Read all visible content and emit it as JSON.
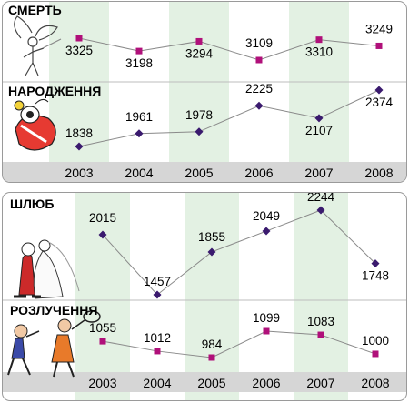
{
  "chart_data": [
    {
      "type": "line",
      "categories": [
        "2003",
        "2004",
        "2005",
        "2006",
        "2007",
        "2008"
      ],
      "series": [
        {
          "name": "СМЕРТЬ",
          "values": [
            3325,
            3198,
            3294,
            3109,
            3310,
            3249
          ],
          "color": "#b0107a",
          "marker": "square"
        },
        {
          "name": "НАРОДЖЕННЯ",
          "values": [
            1838,
            1961,
            1978,
            2225,
            2107,
            2374
          ],
          "color": "#3a1a6e",
          "marker": "diamond"
        }
      ],
      "highlighted_columns": [
        "2003",
        "2005",
        "2007"
      ]
    },
    {
      "type": "line",
      "categories": [
        "2003",
        "2004",
        "2005",
        "2006",
        "2007",
        "2008"
      ],
      "series": [
        {
          "name": "ШЛЮБ",
          "values": [
            2015,
            1457,
            1855,
            2049,
            2244,
            1748
          ],
          "color": "#3a1a6e",
          "marker": "diamond"
        },
        {
          "name": "РОЗЛУЧЕННЯ",
          "values": [
            1055,
            1012,
            984,
            1099,
            1083,
            1000
          ],
          "color": "#b0107a",
          "marker": "square"
        }
      ],
      "highlighted_columns": [
        "2003",
        "2005",
        "2007"
      ]
    }
  ]
}
